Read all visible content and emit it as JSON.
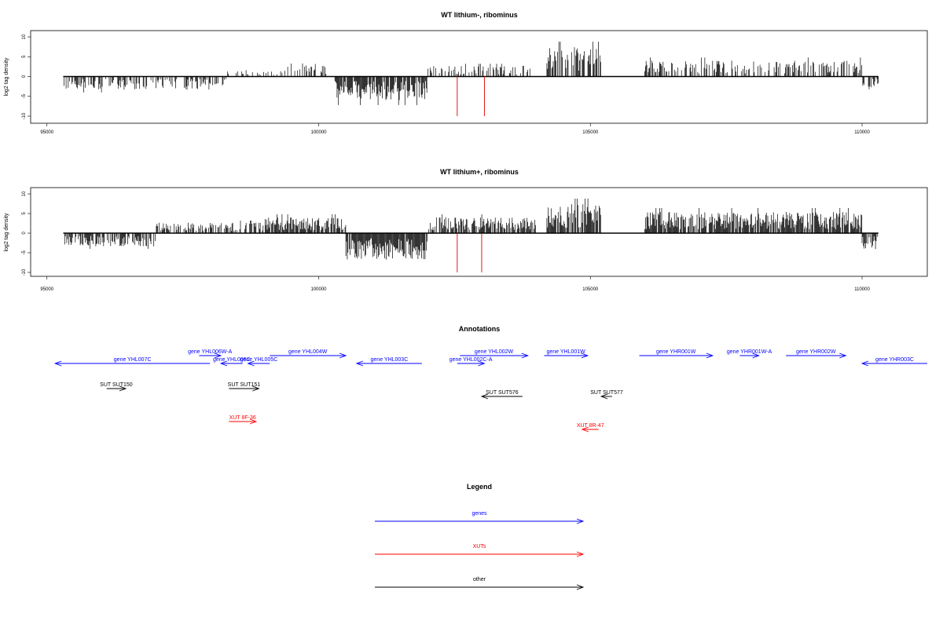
{
  "chart_data": [
    {
      "type": "bar",
      "title": "WT lithium-, ribominus",
      "ylabel": "log2 tag density",
      "xlim": [
        94700,
        111200
      ],
      "ylim": [
        -10,
        10
      ],
      "xticks": [
        95000,
        100000,
        105000,
        110000
      ],
      "yticks": [
        10,
        5,
        0,
        -5,
        -10
      ],
      "data_extent": [
        95300,
        110300
      ],
      "profile": [
        {
          "from": 95300,
          "to": 98300,
          "value": -2.5,
          "density": 0.5
        },
        {
          "from": 98300,
          "to": 99300,
          "value": 1.0,
          "density": 0.25
        },
        {
          "from": 99300,
          "to": 100300,
          "value": 2.5,
          "density": 0.4
        },
        {
          "from": 100300,
          "to": 102000,
          "value": -4.5,
          "density": 0.85
        },
        {
          "from": 102000,
          "to": 103900,
          "value": 2.0,
          "density": 0.4
        },
        {
          "from": 104200,
          "to": 105200,
          "value": 5.5,
          "density": 0.7
        },
        {
          "from": 106000,
          "to": 110000,
          "value": 3.0,
          "density": 0.45
        },
        {
          "from": 110000,
          "to": 110300,
          "value": -2.5,
          "density": 0.7
        }
      ],
      "markers": [
        102550,
        103050
      ],
      "marker_value": -10
    },
    {
      "type": "bar",
      "title": "WT lithium+, ribominus",
      "ylabel": "log2 tag density",
      "xlim": [
        94700,
        111200
      ],
      "ylim": [
        -10,
        10
      ],
      "xticks": [
        95000,
        100000,
        105000,
        110000
      ],
      "yticks": [
        10,
        5,
        0,
        -5,
        -10
      ],
      "data_extent": [
        95300,
        110300
      ],
      "profile": [
        {
          "from": 95300,
          "to": 97000,
          "value": -2.5,
          "density": 0.7
        },
        {
          "from": 97000,
          "to": 99000,
          "value": 2.0,
          "density": 0.6
        },
        {
          "from": 99000,
          "to": 100500,
          "value": 3.0,
          "density": 0.8
        },
        {
          "from": 100500,
          "to": 102000,
          "value": -5.0,
          "density": 0.95
        },
        {
          "from": 102000,
          "to": 104000,
          "value": 3.0,
          "density": 0.8
        },
        {
          "from": 104200,
          "to": 105200,
          "value": 5.5,
          "density": 0.9
        },
        {
          "from": 106000,
          "to": 110000,
          "value": 4.0,
          "density": 0.85
        },
        {
          "from": 110000,
          "to": 110300,
          "value": -3.0,
          "density": 0.8
        }
      ],
      "markers": [
        102550,
        103000
      ],
      "marker_value": -10
    }
  ],
  "annotations": {
    "title": "Annotations",
    "colors": {
      "genes": "#0000ff",
      "xuts": "#ff0000",
      "other": "#000000"
    },
    "features": [
      {
        "label": "gene YHL007C",
        "start": 95150,
        "end": 98000,
        "row": 2,
        "category": "genes"
      },
      {
        "label": "gene YHL006W-A",
        "start": 97800,
        "end": 98200,
        "row": 1,
        "category": "genes"
      },
      {
        "label": "gene YHL006C",
        "start": 98200,
        "end": 98600,
        "row": 2,
        "category": "genes"
      },
      {
        "label": "gene YHL005C",
        "start": 98700,
        "end": 99100,
        "row": 2,
        "category": "genes"
      },
      {
        "label": "gene YHL004W",
        "start": 99100,
        "end": 100500,
        "row": 1,
        "category": "genes"
      },
      {
        "label": "gene YHL003C",
        "start": 100700,
        "end": 101900,
        "row": 2,
        "category": "genes"
      },
      {
        "label": "gene YHL002W",
        "start": 102600,
        "end": 103850,
        "row": 1,
        "category": "genes"
      },
      {
        "label": "gene YHL002C-A",
        "start": 102550,
        "end": 103050,
        "row": 2,
        "category": "genes"
      },
      {
        "label": "gene YHL001W",
        "start": 104150,
        "end": 104950,
        "row": 1,
        "category": "genes"
      },
      {
        "label": "gene YHR001W",
        "start": 105900,
        "end": 107250,
        "row": 1,
        "category": "genes"
      },
      {
        "label": "gene YHR001W-A",
        "start": 107750,
        "end": 108100,
        "row": 1,
        "category": "genes"
      },
      {
        "label": "gene YHR002W",
        "start": 108600,
        "end": 109700,
        "row": 1,
        "category": "genes"
      },
      {
        "label": "gene YHR003C",
        "start": 110000,
        "end": 111200,
        "row": 2,
        "category": "genes"
      },
      {
        "label": "SUT SUT150",
        "start": 96100,
        "end": 96450,
        "row": 3,
        "category": "other"
      },
      {
        "label": "SUT SUT151",
        "start": 98350,
        "end": 98900,
        "row": 3,
        "category": "other"
      },
      {
        "label": "SUT SUT576",
        "start": 103000,
        "end": 103750,
        "row": 4,
        "category": "other"
      },
      {
        "label": "SUT SUT577",
        "start": 105200,
        "end": 105400,
        "row": 4,
        "category": "other"
      },
      {
        "label": "XUT 8F-36",
        "start": 98350,
        "end": 98850,
        "row": 5,
        "category": "xuts"
      },
      {
        "label": "XUT 8R-47",
        "start": 104850,
        "end": 105150,
        "row": 6,
        "category": "xuts"
      }
    ]
  },
  "legend": {
    "title": "Legend",
    "items": [
      {
        "label": "genes",
        "color": "#0000ff"
      },
      {
        "label": "XUTs",
        "color": "#ff0000"
      },
      {
        "label": "other",
        "color": "#000000"
      }
    ]
  }
}
